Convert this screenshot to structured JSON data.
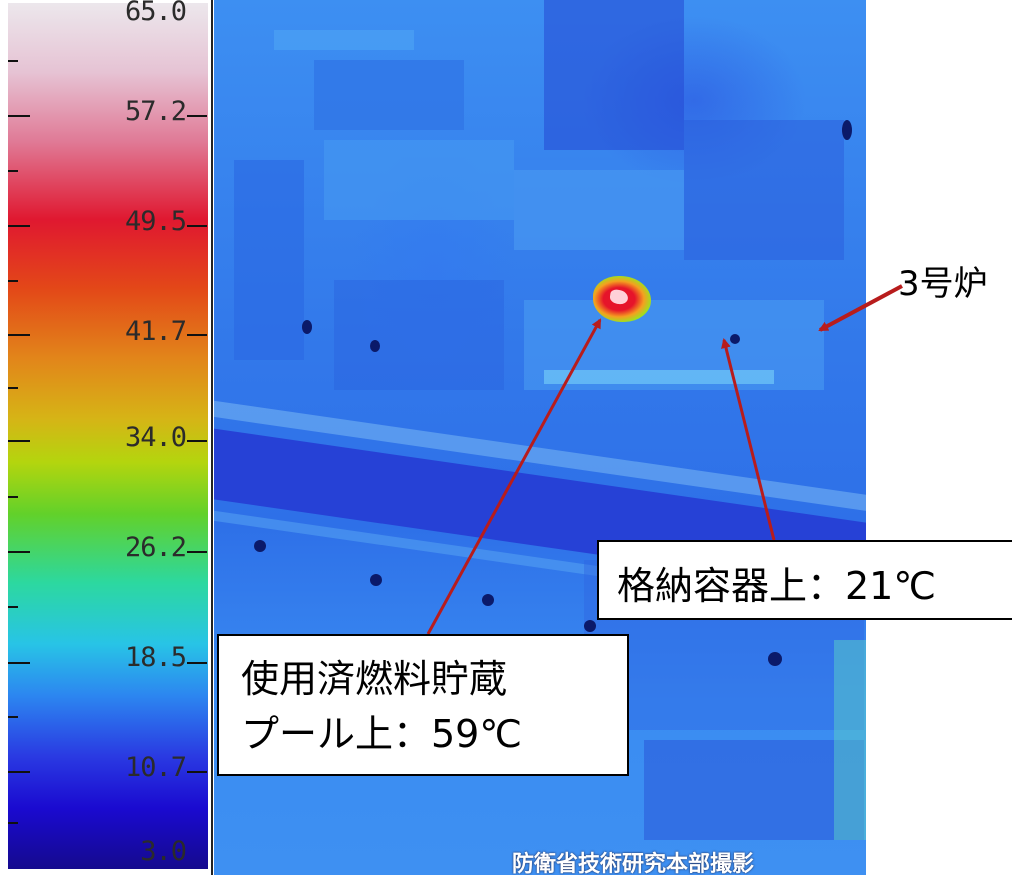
{
  "color_scale": {
    "ticks": [
      "65.0",
      "57.2",
      "49.5",
      "41.7",
      "34.0",
      "26.2",
      "18.5",
      "10.7",
      "3.0"
    ],
    "max": 65.0,
    "min": 3.0
  },
  "annotations": {
    "reactor": "3号炉",
    "container": "格納容器上：21℃",
    "pool_line1": "使用済燃料貯蔵",
    "pool_line2": "プール上：59℃",
    "arrow_color": "#b81c1c"
  },
  "credit": "防衛省技術研究本部撮影"
}
